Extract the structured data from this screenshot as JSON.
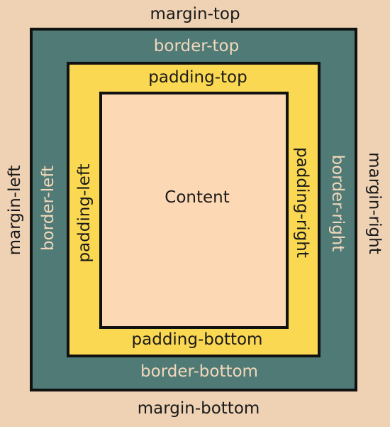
{
  "colors": {
    "margin": "#efd2b4",
    "border": "#4f7a76",
    "padding": "#fbd852",
    "content": "#fdd8b4",
    "outline": "#111111",
    "dark_text": "#1a1a1a",
    "light_text": "#f3d8bb"
  },
  "margin": {
    "top": "margin-top",
    "bottom": "margin-bottom",
    "left": "margin-left",
    "right": "margin-right"
  },
  "border": {
    "top": "border-top",
    "bottom": "border-bottom",
    "left": "border-left",
    "right": "border-right"
  },
  "padding": {
    "top": "padding-top",
    "bottom": "padding-bottom",
    "left": "padding-left",
    "right": "padding-right"
  },
  "content": {
    "label": "Content"
  }
}
